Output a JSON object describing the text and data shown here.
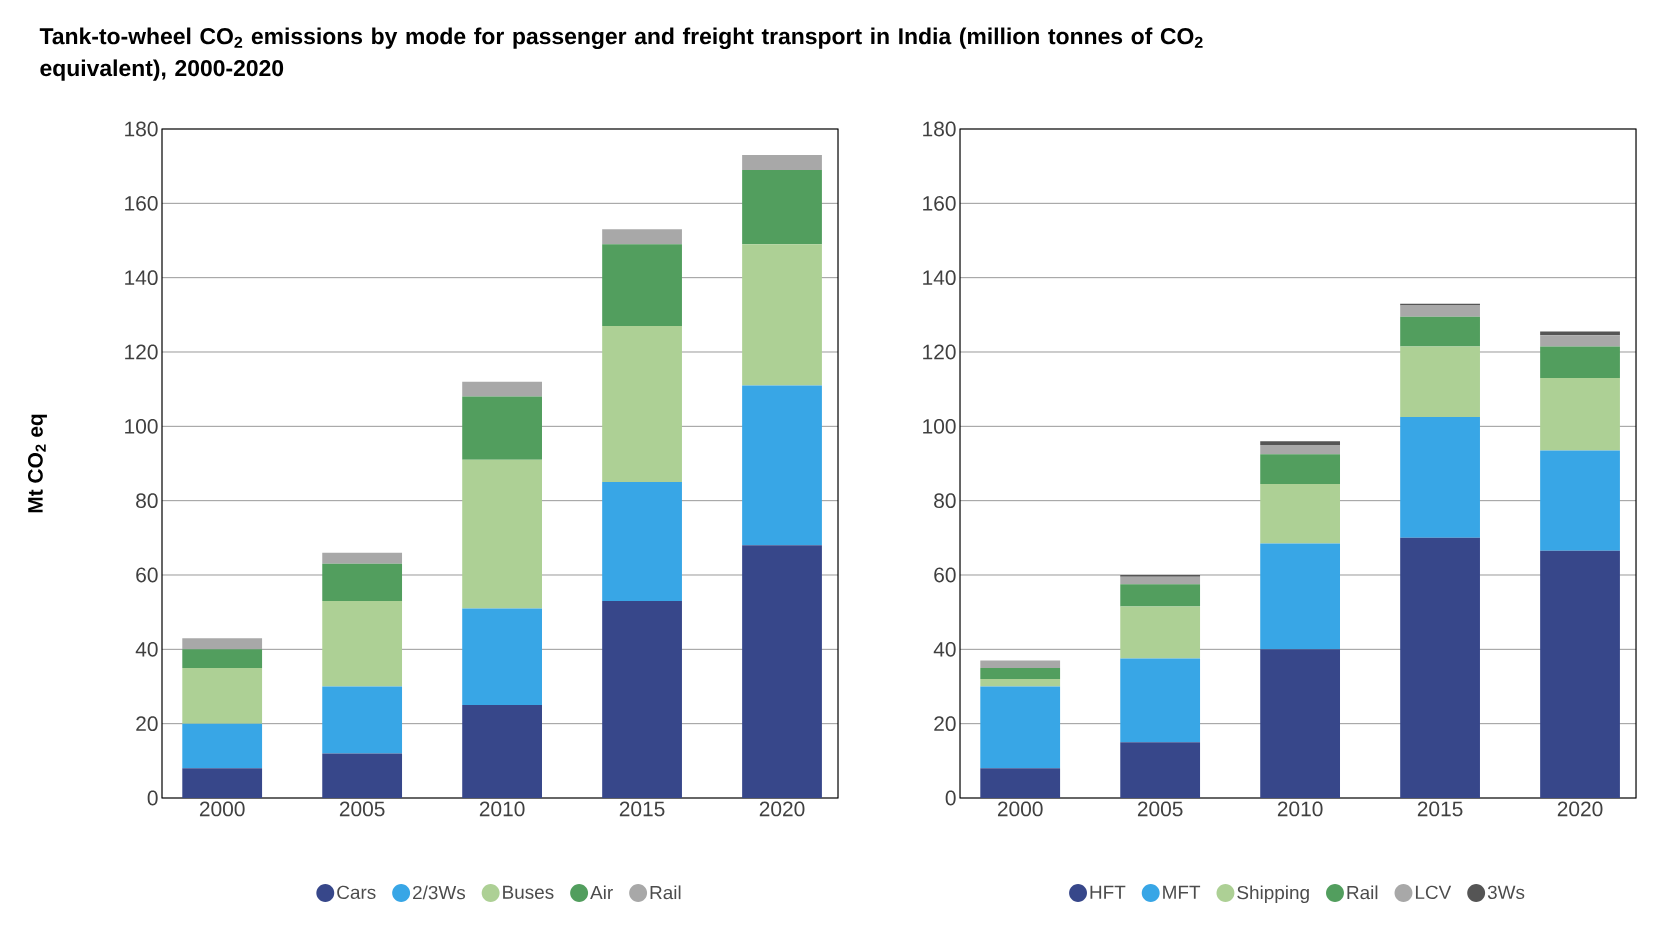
{
  "chart_data": [
    {
      "type": "bar",
      "title": "Tank-to-wheel CO$_{2}$ emissions by mode for passenger and freight transport in India (million tonnes of CO$_{2}$ equivalent), 2000-2020",
      "ylabel": "Mt CO$_{2}$ eq",
      "categories": [
        "2000",
        "2005",
        "2010",
        "2015",
        "2020"
      ],
      "stacked": true,
      "grid": "y",
      "legend": "bottom",
      "ylim": [
        0,
        180
      ],
      "yticks": [
        0,
        20,
        40,
        60,
        80,
        100,
        120,
        140,
        160,
        180
      ],
      "series": [
        {
          "name": "Cars",
          "color": "#37478a",
          "values": [
            8,
            12,
            25,
            53,
            68
          ]
        },
        {
          "name": "2/3Ws",
          "color": "#38a6e6",
          "values": [
            12,
            18,
            26,
            32,
            43
          ]
        },
        {
          "name": "Buses",
          "color": "#add095",
          "values": [
            15,
            23,
            40,
            42,
            38
          ]
        },
        {
          "name": "Air",
          "color": "#529e5e",
          "values": [
            5,
            10,
            17,
            22,
            20
          ]
        },
        {
          "name": "Rail",
          "color": "#a8a8a8",
          "values": [
            3,
            3,
            4,
            4,
            4
          ]
        }
      ]
    },
    {
      "type": "bar",
      "categories": [
        "2000",
        "2005",
        "2010",
        "2015",
        "2020"
      ],
      "stacked": true,
      "grid": "y",
      "legend": "bottom",
      "ylim": [
        0,
        180
      ],
      "yticks": [
        0,
        20,
        40,
        60,
        80,
        100,
        120,
        140,
        160,
        180
      ],
      "series": [
        {
          "name": "HFT",
          "color": "#37478a",
          "values": [
            8,
            15,
            40,
            70,
            66.5
          ]
        },
        {
          "name": "MFT",
          "color": "#38a6e6",
          "values": [
            22,
            22.5,
            28.5,
            32.5,
            27
          ]
        },
        {
          "name": "Shipping",
          "color": "#add095",
          "values": [
            2,
            14,
            16,
            19,
            19.5
          ]
        },
        {
          "name": "Rail",
          "color": "#529e5e",
          "values": [
            3,
            6,
            8,
            8,
            8.5
          ]
        },
        {
          "name": "LCV",
          "color": "#a8a8a8",
          "values": [
            2,
            2,
            2.5,
            3,
            3
          ]
        },
        {
          "name": "3Ws",
          "color": "#555555",
          "values": [
            0,
            0.5,
            1,
            0.5,
            1
          ]
        }
      ]
    }
  ]
}
